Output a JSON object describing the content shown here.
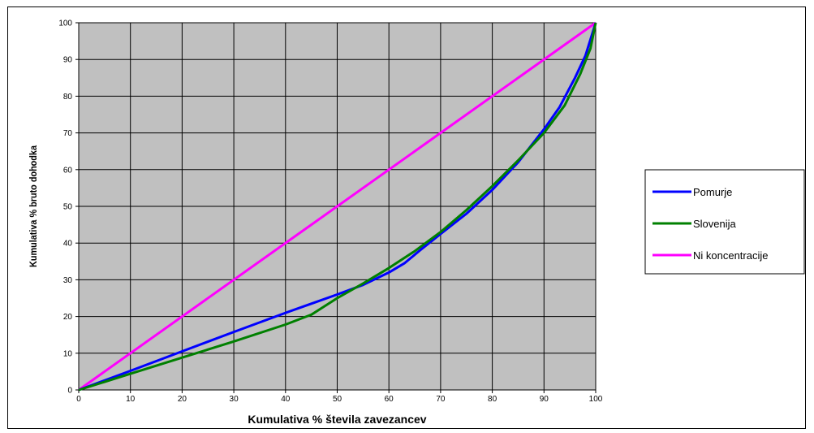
{
  "chart_data": {
    "type": "line",
    "title": "",
    "xlabel": "Kumulativa % števila zavezancev",
    "ylabel": "Kumulativa % bruto dohodka",
    "xlim": [
      0,
      100
    ],
    "ylim": [
      0,
      100
    ],
    "x_ticks": [
      0,
      10,
      20,
      30,
      40,
      50,
      60,
      70,
      80,
      90,
      100
    ],
    "y_ticks": [
      0,
      10,
      20,
      30,
      40,
      50,
      60,
      70,
      80,
      90,
      100
    ],
    "grid": true,
    "legend_position": "right",
    "colors": {
      "plot_background": "#c0c0c0",
      "grid": "#000000",
      "pomurje": "#0000ff",
      "slovenija": "#008000",
      "ni_koncentracije": "#ff00ff"
    },
    "series": [
      {
        "name": "Pomurje",
        "color": "#0000ff",
        "points": [
          [
            0,
            0
          ],
          [
            10,
            5.2
          ],
          [
            20,
            10.5
          ],
          [
            30,
            15.8
          ],
          [
            40,
            21
          ],
          [
            50,
            26
          ],
          [
            55,
            28.6
          ],
          [
            60,
            32
          ],
          [
            63,
            34.5
          ],
          [
            66,
            38
          ],
          [
            70,
            42.5
          ],
          [
            75,
            48
          ],
          [
            80,
            54.5
          ],
          [
            85,
            62
          ],
          [
            90,
            71
          ],
          [
            93,
            77
          ],
          [
            96,
            85
          ],
          [
            98,
            91
          ],
          [
            100,
            100
          ]
        ]
      },
      {
        "name": "Slovenija",
        "color": "#008000",
        "points": [
          [
            0,
            0
          ],
          [
            10,
            4.4
          ],
          [
            20,
            8.8
          ],
          [
            30,
            13.2
          ],
          [
            40,
            17.8
          ],
          [
            45,
            20.5
          ],
          [
            50,
            25
          ],
          [
            55,
            29
          ],
          [
            60,
            33.2
          ],
          [
            65,
            37.8
          ],
          [
            70,
            43
          ],
          [
            75,
            49
          ],
          [
            80,
            55.5
          ],
          [
            85,
            62.5
          ],
          [
            90,
            70
          ],
          [
            94,
            77.5
          ],
          [
            97,
            86
          ],
          [
            99,
            93
          ],
          [
            100,
            100
          ]
        ]
      },
      {
        "name": "Ni koncentracije",
        "color": "#ff00ff",
        "points": [
          [
            0,
            0
          ],
          [
            100,
            100
          ]
        ]
      }
    ]
  }
}
